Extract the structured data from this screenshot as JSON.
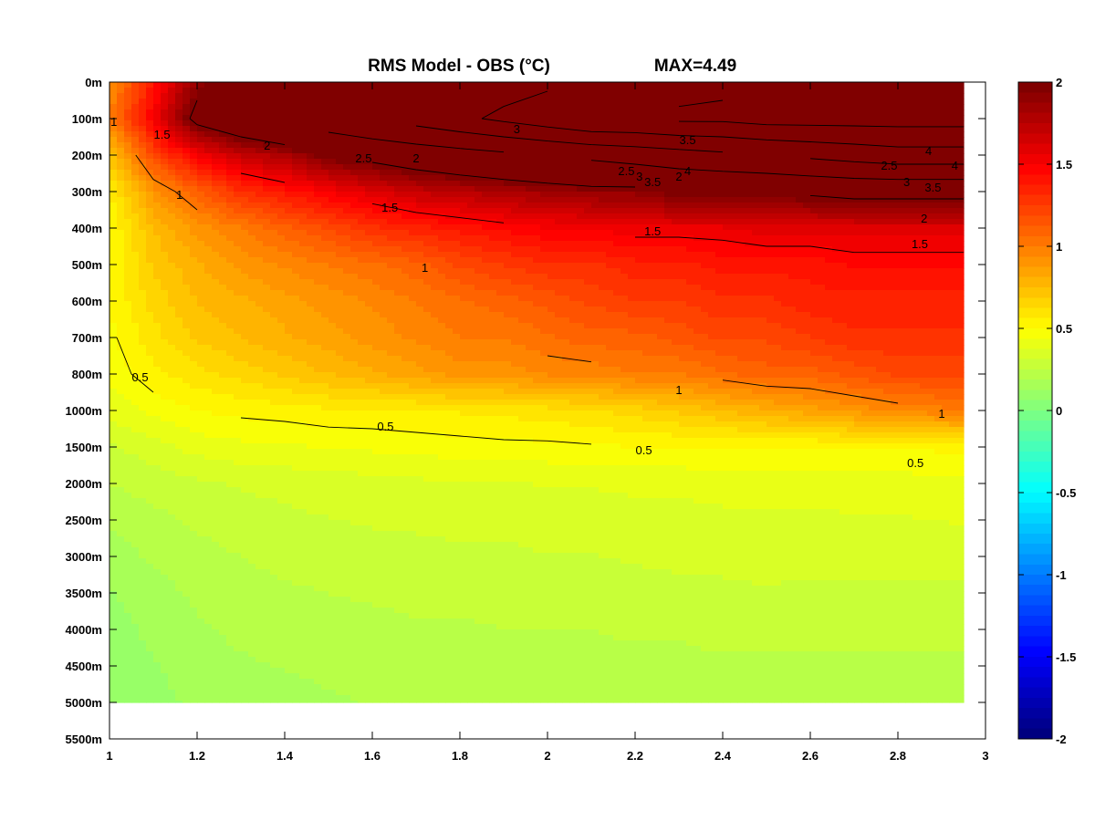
{
  "chart_data": {
    "type": "heatmap",
    "title": "RMS Model - OBS (°C)",
    "annotation": "MAX=4.49",
    "xlabel": "",
    "ylabel": "",
    "xlim": [
      1,
      3
    ],
    "x_ticks": [
      "1",
      "1.2",
      "1.4",
      "1.6",
      "1.8",
      "2",
      "2.2",
      "2.4",
      "2.6",
      "2.8",
      "3"
    ],
    "y_ticks": [
      "0m",
      "100m",
      "200m",
      "300m",
      "400m",
      "500m",
      "600m",
      "700m",
      "800m",
      "1000m",
      "1500m",
      "2000m",
      "2500m",
      "3000m",
      "3500m",
      "4000m",
      "4500m",
      "5000m",
      "5500m"
    ],
    "colorbar": {
      "range": [
        -2,
        2
      ],
      "ticks": [
        "2",
        "1.5",
        "1",
        "0.5",
        "0",
        "-0.5",
        "-1",
        "-1.5",
        "-2"
      ],
      "colormap": "jet"
    },
    "grid": false,
    "x": [
      1,
      1.1,
      1.2,
      1.3,
      1.4,
      1.5,
      1.6,
      1.7,
      1.8,
      1.9,
      2.0,
      2.1,
      2.2,
      2.3,
      2.4,
      2.5,
      2.6,
      2.7,
      2.8,
      2.95
    ],
    "depth_levels": [
      "0m",
      "100m",
      "200m",
      "300m",
      "400m",
      "500m",
      "600m",
      "700m",
      "800m",
      "1000m",
      "1500m",
      "2000m",
      "2500m",
      "3000m",
      "3500m",
      "4000m",
      "4500m",
      "5000m"
    ],
    "values": [
      [
        0.9,
        1.4,
        1.9,
        2.0,
        2.3,
        3.0,
        3.0,
        3.1,
        3.2,
        3.3,
        3.4,
        3.5,
        3.6,
        3.8,
        3.9,
        4.0,
        4.1,
        4.2,
        4.3,
        4.4
      ],
      [
        1.0,
        1.5,
        2.1,
        2.3,
        2.5,
        2.8,
        3.0,
        3.2,
        3.4,
        3.6,
        3.8,
        4.0,
        4.0,
        4.1,
        4.1,
        4.2,
        4.2,
        4.2,
        4.2,
        4.2
      ],
      [
        0.7,
        1.2,
        1.5,
        1.7,
        1.8,
        2.0,
        2.1,
        2.2,
        2.3,
        2.4,
        2.5,
        2.6,
        2.7,
        2.8,
        2.9,
        3.0,
        3.1,
        3.2,
        3.3,
        3.3
      ],
      [
        0.55,
        0.9,
        1.1,
        1.3,
        1.4,
        1.5,
        1.6,
        1.7,
        1.75,
        1.8,
        1.85,
        1.9,
        1.9,
        2.0,
        2.0,
        2.0,
        2.05,
        2.1,
        2.1,
        2.1
      ],
      [
        0.5,
        0.75,
        0.9,
        1.0,
        1.1,
        1.2,
        1.3,
        1.35,
        1.4,
        1.45,
        1.5,
        1.5,
        1.55,
        1.55,
        1.55,
        1.6,
        1.6,
        1.6,
        1.6,
        1.6
      ],
      [
        0.5,
        0.7,
        0.8,
        0.9,
        0.95,
        1.0,
        1.05,
        1.1,
        1.2,
        1.25,
        1.3,
        1.3,
        1.35,
        1.35,
        1.4,
        1.4,
        1.4,
        1.45,
        1.45,
        1.45
      ],
      [
        0.5,
        0.65,
        0.75,
        0.8,
        0.85,
        0.9,
        0.95,
        1.0,
        1.05,
        1.1,
        1.15,
        1.2,
        1.25,
        1.25,
        1.3,
        1.3,
        1.35,
        1.35,
        1.35,
        1.35
      ],
      [
        0.48,
        0.6,
        0.7,
        0.75,
        0.8,
        0.85,
        0.9,
        0.95,
        1.0,
        1.0,
        1.05,
        1.1,
        1.1,
        1.15,
        1.2,
        1.2,
        1.25,
        1.3,
        1.3,
        1.3
      ],
      [
        0.45,
        0.55,
        0.6,
        0.65,
        0.7,
        0.75,
        0.8,
        0.85,
        0.9,
        0.9,
        0.95,
        0.95,
        1.0,
        1.0,
        1.05,
        1.1,
        1.1,
        1.15,
        1.2,
        1.2
      ],
      [
        0.4,
        0.45,
        0.5,
        0.52,
        0.53,
        0.55,
        0.55,
        0.56,
        0.57,
        0.58,
        0.6,
        0.62,
        0.65,
        0.7,
        0.75,
        0.8,
        0.85,
        0.9,
        0.95,
        1.0
      ],
      [
        0.3,
        0.35,
        0.4,
        0.42,
        0.43,
        0.44,
        0.45,
        0.46,
        0.47,
        0.48,
        0.48,
        0.49,
        0.5,
        0.5,
        0.5,
        0.5,
        0.5,
        0.5,
        0.5,
        0.52
      ],
      [
        0.25,
        0.28,
        0.3,
        0.32,
        0.33,
        0.34,
        0.35,
        0.36,
        0.37,
        0.37,
        0.38,
        0.38,
        0.39,
        0.39,
        0.4,
        0.4,
        0.4,
        0.41,
        0.41,
        0.42
      ],
      [
        0.2,
        0.23,
        0.26,
        0.28,
        0.3,
        0.31,
        0.32,
        0.32,
        0.33,
        0.33,
        0.34,
        0.34,
        0.35,
        0.35,
        0.36,
        0.36,
        0.36,
        0.37,
        0.37,
        0.38
      ],
      [
        0.15,
        0.2,
        0.23,
        0.25,
        0.27,
        0.28,
        0.29,
        0.3,
        0.3,
        0.3,
        0.31,
        0.31,
        0.32,
        0.33,
        0.33,
        0.33,
        0.33,
        0.33,
        0.33,
        0.34
      ],
      [
        0.12,
        0.16,
        0.2,
        0.22,
        0.24,
        0.25,
        0.26,
        0.27,
        0.27,
        0.28,
        0.28,
        0.28,
        0.29,
        0.29,
        0.3,
        0.31,
        0.3,
        0.3,
        0.3,
        0.3
      ],
      [
        0.1,
        0.14,
        0.18,
        0.2,
        0.21,
        0.22,
        0.23,
        0.24,
        0.24,
        0.25,
        0.25,
        0.25,
        0.26,
        0.26,
        0.27,
        0.27,
        0.27,
        0.27,
        0.27,
        0.27
      ],
      [
        0.08,
        0.12,
        0.16,
        0.18,
        0.19,
        0.2,
        0.21,
        0.21,
        0.22,
        0.22,
        0.22,
        0.23,
        0.23,
        0.23,
        0.24,
        0.24,
        0.24,
        0.24,
        0.24,
        0.24
      ],
      [
        0.07,
        0.1,
        0.14,
        0.16,
        0.17,
        0.18,
        0.19,
        0.19,
        0.2,
        0.2,
        0.2,
        0.21,
        0.21,
        0.21,
        0.22,
        0.22,
        0.22,
        0.22,
        0.22,
        0.22
      ]
    ],
    "contour_labels": [
      {
        "text": "1",
        "x": 1.01,
        "depth": "100m"
      },
      {
        "text": "1.5",
        "x": 1.12,
        "depth": "100m"
      },
      {
        "text": "2",
        "x": 1.36,
        "depth": "100m"
      },
      {
        "text": "3",
        "x": 1.93,
        "depth": "100m"
      },
      {
        "text": "3.5",
        "x": 2.32,
        "depth": "100m"
      },
      {
        "text": "4",
        "x": 2.87,
        "depth": "100m"
      },
      {
        "text": "2.5",
        "x": 1.58,
        "depth": "200m"
      },
      {
        "text": "4",
        "x": 2.32,
        "depth": "200m"
      },
      {
        "text": "3.5",
        "x": 2.24,
        "depth": "200m"
      },
      {
        "text": "4",
        "x": 2.93,
        "depth": "200m"
      },
      {
        "text": "3",
        "x": 2.21,
        "depth": "200m"
      },
      {
        "text": "3.5",
        "x": 2.88,
        "depth": "200m"
      },
      {
        "text": "2",
        "x": 1.7,
        "depth": "200m"
      },
      {
        "text": "2.5",
        "x": 2.18,
        "depth": "200m"
      },
      {
        "text": "3",
        "x": 2.82,
        "depth": "200m"
      },
      {
        "text": "2.5",
        "x": 2.78,
        "depth": "200m"
      },
      {
        "text": "2",
        "x": 2.3,
        "depth": "200m"
      },
      {
        "text": "1",
        "x": 1.16,
        "depth": "300m"
      },
      {
        "text": "1.5",
        "x": 1.64,
        "depth": "300m"
      },
      {
        "text": "2",
        "x": 2.86,
        "depth": "300m"
      },
      {
        "text": "1.5",
        "x": 2.24,
        "depth": "400m"
      },
      {
        "text": "1.5",
        "x": 2.85,
        "depth": "400m"
      },
      {
        "text": "1",
        "x": 1.72,
        "depth": "500m"
      },
      {
        "text": "0.5",
        "x": 1.07,
        "depth": "800m"
      },
      {
        "text": "1",
        "x": 2.3,
        "depth": "800m"
      },
      {
        "text": "1",
        "x": 2.9,
        "depth": "1000m"
      },
      {
        "text": "0.5",
        "x": 1.63,
        "depth": "1000m"
      },
      {
        "text": "0.5",
        "x": 2.22,
        "depth": "1500m"
      },
      {
        "text": "0.5",
        "x": 2.84,
        "depth": "1500m"
      }
    ]
  }
}
